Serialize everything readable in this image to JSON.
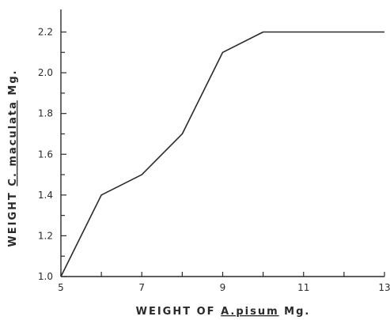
{
  "chart_data": {
    "type": "line",
    "title": "",
    "xlabel": "WEIGHT OF A.pisum Mg.",
    "xlabel_parts": [
      "WEIGHT OF ",
      "A.pisum",
      " Mg."
    ],
    "ylabel": "WEIGHT C. maculata Mg.",
    "ylabel_parts": [
      "WEIGHT ",
      "C. maculata",
      " Mg."
    ],
    "xlim": [
      5,
      13
    ],
    "ylim": [
      1.0,
      2.3
    ],
    "xticks": [
      5,
      6,
      7,
      8,
      9,
      10,
      11,
      12,
      13
    ],
    "xtick_labels": [
      "5",
      "",
      "7",
      "",
      "9",
      "",
      "11",
      "",
      "13"
    ],
    "yticks": [
      1.0,
      1.1,
      1.2,
      1.3,
      1.4,
      1.5,
      1.6,
      1.7,
      1.8,
      1.9,
      2.0,
      2.1,
      2.2
    ],
    "ytick_labels": [
      "1.0",
      "",
      "1.2",
      "",
      "1.4",
      "",
      "1.6",
      "",
      "1.8",
      "",
      "2.0",
      "",
      "2.2"
    ],
    "grid": false,
    "series": [
      {
        "x": [
          5,
          6,
          7,
          8,
          9,
          10,
          11,
          12,
          13
        ],
        "y": [
          1.0,
          1.4,
          1.5,
          1.7,
          2.1,
          2.2,
          2.2,
          2.2,
          2.2
        ]
      }
    ],
    "color": "#2a2a2a"
  }
}
